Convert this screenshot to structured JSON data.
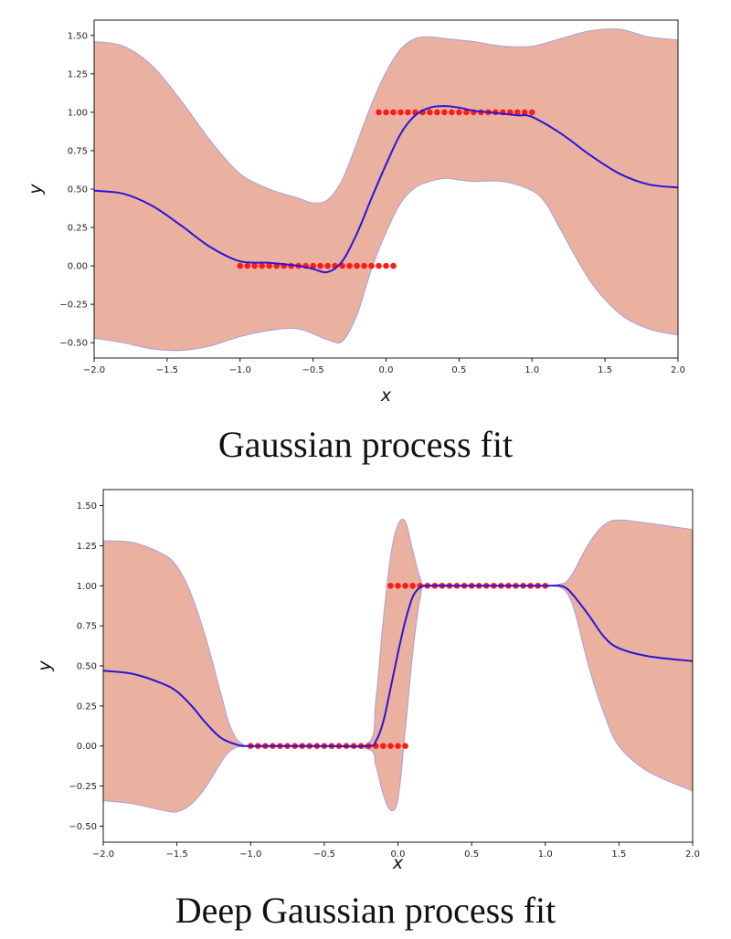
{
  "chart_data": [
    {
      "type": "line",
      "caption": "Gaussian process fit",
      "xlabel": "x",
      "ylabel": "y",
      "xlim": [
        -2.0,
        2.0
      ],
      "ylim": [
        -0.6,
        1.6
      ],
      "xticks": [
        "−2.0",
        "−1.5",
        "−1.0",
        "−0.5",
        "0.0",
        "0.5",
        "1.0",
        "1.5",
        "2.0"
      ],
      "xtick_values": [
        -2.0,
        -1.5,
        -1.0,
        -0.5,
        0.0,
        0.5,
        1.0,
        1.5,
        2.0
      ],
      "yticks": [
        "−0.50",
        "−0.25",
        "0.00",
        "0.25",
        "0.50",
        "0.75",
        "1.00",
        "1.25",
        "1.50"
      ],
      "ytick_values": [
        -0.5,
        -0.25,
        0.0,
        0.25,
        0.5,
        0.75,
        1.0,
        1.25,
        1.5
      ],
      "grid": false,
      "colors": {
        "mean": "#2a14d8",
        "band": "#ebb1a0",
        "band_edge": "#b3a3d6",
        "points": "#ff1a1a"
      },
      "mean": {
        "x": [
          -2.0,
          -1.8,
          -1.6,
          -1.4,
          -1.2,
          -1.0,
          -0.8,
          -0.6,
          -0.5,
          -0.4,
          -0.3,
          -0.2,
          -0.1,
          0.0,
          0.1,
          0.2,
          0.3,
          0.4,
          0.5,
          0.6,
          0.7,
          0.8,
          0.9,
          1.0,
          1.2,
          1.4,
          1.6,
          1.8,
          2.0
        ],
        "y": [
          0.49,
          0.47,
          0.39,
          0.26,
          0.12,
          0.03,
          0.02,
          0.0,
          -0.02,
          -0.04,
          0.03,
          0.21,
          0.44,
          0.66,
          0.86,
          0.98,
          1.03,
          1.04,
          1.03,
          1.01,
          1.0,
          0.99,
          0.98,
          0.97,
          0.86,
          0.72,
          0.6,
          0.53,
          0.51
        ]
      },
      "band_upper": {
        "x": [
          -2.0,
          -1.8,
          -1.6,
          -1.4,
          -1.2,
          -1.0,
          -0.8,
          -0.6,
          -0.5,
          -0.4,
          -0.3,
          -0.2,
          -0.1,
          0.0,
          0.1,
          0.2,
          0.3,
          0.4,
          0.5,
          0.6,
          0.8,
          1.0,
          1.2,
          1.4,
          1.6,
          1.8,
          2.0
        ],
        "y": [
          1.46,
          1.43,
          1.3,
          1.07,
          0.81,
          0.6,
          0.5,
          0.44,
          0.41,
          0.43,
          0.56,
          0.8,
          1.05,
          1.26,
          1.41,
          1.48,
          1.49,
          1.48,
          1.47,
          1.46,
          1.43,
          1.43,
          1.48,
          1.53,
          1.54,
          1.49,
          1.47
        ]
      },
      "band_lower": {
        "x": [
          -2.0,
          -1.8,
          -1.6,
          -1.4,
          -1.2,
          -1.0,
          -0.8,
          -0.6,
          -0.4,
          -0.3,
          -0.2,
          -0.1,
          0.0,
          0.1,
          0.2,
          0.3,
          0.4,
          0.5,
          0.6,
          0.8,
          1.0,
          1.1,
          1.2,
          1.4,
          1.6,
          1.8,
          2.0
        ],
        "y": [
          -0.47,
          -0.5,
          -0.54,
          -0.55,
          -0.52,
          -0.46,
          -0.42,
          -0.41,
          -0.48,
          -0.49,
          -0.32,
          -0.02,
          0.22,
          0.41,
          0.51,
          0.55,
          0.57,
          0.56,
          0.55,
          0.55,
          0.49,
          0.4,
          0.23,
          -0.1,
          -0.31,
          -0.41,
          -0.45
        ]
      },
      "points": [
        {
          "y": 0.0,
          "x": [
            -1.0,
            -0.95,
            -0.9,
            -0.85,
            -0.8,
            -0.75,
            -0.7,
            -0.65,
            -0.6,
            -0.55,
            -0.5,
            -0.45,
            -0.4,
            -0.35,
            -0.3,
            -0.25,
            -0.2,
            -0.15,
            -0.1,
            -0.05,
            0.0,
            0.05
          ]
        },
        {
          "y": 1.0,
          "x": [
            -0.05,
            0.0,
            0.05,
            0.1,
            0.15,
            0.2,
            0.25,
            0.3,
            0.35,
            0.4,
            0.45,
            0.5,
            0.55,
            0.6,
            0.65,
            0.7,
            0.75,
            0.8,
            0.85,
            0.9,
            0.95,
            1.0
          ]
        }
      ]
    },
    {
      "type": "line",
      "caption": "Deep Gaussian process fit",
      "xlabel": "x",
      "ylabel": "y",
      "xlim": [
        -2.0,
        2.0
      ],
      "ylim": [
        -0.6,
        1.6
      ],
      "xticks": [
        "−2.0",
        "−1.5",
        "−1.0",
        "−0.5",
        "0.0",
        "0.5",
        "1.0",
        "1.5",
        "2.0"
      ],
      "xtick_values": [
        -2.0,
        -1.5,
        -1.0,
        -0.5,
        0.0,
        0.5,
        1.0,
        1.5,
        2.0
      ],
      "yticks": [
        "−0.50",
        "−0.25",
        "0.00",
        "0.25",
        "0.50",
        "0.75",
        "1.00",
        "1.25",
        "1.50"
      ],
      "ytick_values": [
        -0.5,
        -0.25,
        0.0,
        0.25,
        0.5,
        0.75,
        1.0,
        1.25,
        1.5
      ],
      "grid": false,
      "colors": {
        "mean": "#2a14d8",
        "band": "#ebb1a0",
        "band_edge": "#b3a3d6",
        "points": "#ff1a1a"
      },
      "mean": {
        "x": [
          -2.0,
          -1.8,
          -1.6,
          -1.5,
          -1.4,
          -1.3,
          -1.2,
          -1.1,
          -1.05,
          -1.0,
          -0.5,
          -0.2,
          -0.15,
          -0.1,
          -0.05,
          0.0,
          0.05,
          0.1,
          0.15,
          0.2,
          0.5,
          1.0,
          1.1,
          1.15,
          1.2,
          1.3,
          1.4,
          1.5,
          1.7,
          2.0
        ],
        "y": [
          0.47,
          0.45,
          0.39,
          0.34,
          0.25,
          0.14,
          0.05,
          0.01,
          0.0,
          0.0,
          0.0,
          0.0,
          0.03,
          0.15,
          0.36,
          0.58,
          0.78,
          0.93,
          0.99,
          1.0,
          1.0,
          1.0,
          1.0,
          0.98,
          0.93,
          0.81,
          0.68,
          0.61,
          0.56,
          0.53
        ]
      },
      "band_upper": {
        "x": [
          -2.0,
          -1.8,
          -1.6,
          -1.5,
          -1.4,
          -1.3,
          -1.2,
          -1.15,
          -1.1,
          -1.05,
          -1.0,
          -0.5,
          -0.2,
          -0.15,
          -0.1,
          -0.05,
          0.0,
          0.05,
          0.1,
          0.15,
          0.2,
          0.5,
          1.0,
          1.1,
          1.15,
          1.2,
          1.3,
          1.4,
          1.5,
          1.7,
          2.0
        ],
        "y": [
          1.28,
          1.27,
          1.2,
          1.12,
          0.94,
          0.66,
          0.32,
          0.15,
          0.05,
          0.01,
          0.0,
          0.0,
          0.02,
          0.28,
          0.78,
          1.18,
          1.38,
          1.4,
          1.22,
          1.05,
          1.0,
          1.0,
          1.0,
          1.01,
          1.03,
          1.1,
          1.27,
          1.38,
          1.41,
          1.39,
          1.35
        ]
      },
      "band_lower": {
        "x": [
          -2.0,
          -1.8,
          -1.6,
          -1.5,
          -1.4,
          -1.3,
          -1.2,
          -1.15,
          -1.1,
          -1.05,
          -1.0,
          -0.5,
          -0.2,
          -0.15,
          -0.1,
          -0.05,
          0.0,
          0.05,
          0.1,
          0.15,
          0.2,
          0.5,
          1.0,
          1.1,
          1.15,
          1.2,
          1.3,
          1.4,
          1.5,
          1.7,
          2.0
        ],
        "y": [
          -0.34,
          -0.36,
          -0.4,
          -0.41,
          -0.36,
          -0.25,
          -0.1,
          -0.04,
          -0.01,
          0.0,
          0.0,
          0.0,
          -0.02,
          -0.12,
          -0.3,
          -0.4,
          -0.33,
          0.1,
          0.58,
          0.92,
          1.0,
          1.0,
          1.0,
          0.99,
          0.95,
          0.84,
          0.48,
          0.2,
          0.0,
          -0.16,
          -0.28
        ]
      },
      "points": [
        {
          "y": 0.0,
          "x": [
            -1.0,
            -0.95,
            -0.9,
            -0.85,
            -0.8,
            -0.75,
            -0.7,
            -0.65,
            -0.6,
            -0.55,
            -0.5,
            -0.45,
            -0.4,
            -0.35,
            -0.3,
            -0.25,
            -0.2,
            -0.15,
            -0.1,
            -0.05,
            0.0,
            0.05
          ]
        },
        {
          "y": 1.0,
          "x": [
            -0.05,
            0.0,
            0.05,
            0.1,
            0.15,
            0.2,
            0.25,
            0.3,
            0.35,
            0.4,
            0.45,
            0.5,
            0.55,
            0.6,
            0.65,
            0.7,
            0.75,
            0.8,
            0.85,
            0.9,
            0.95,
            1.0
          ]
        }
      ]
    }
  ]
}
